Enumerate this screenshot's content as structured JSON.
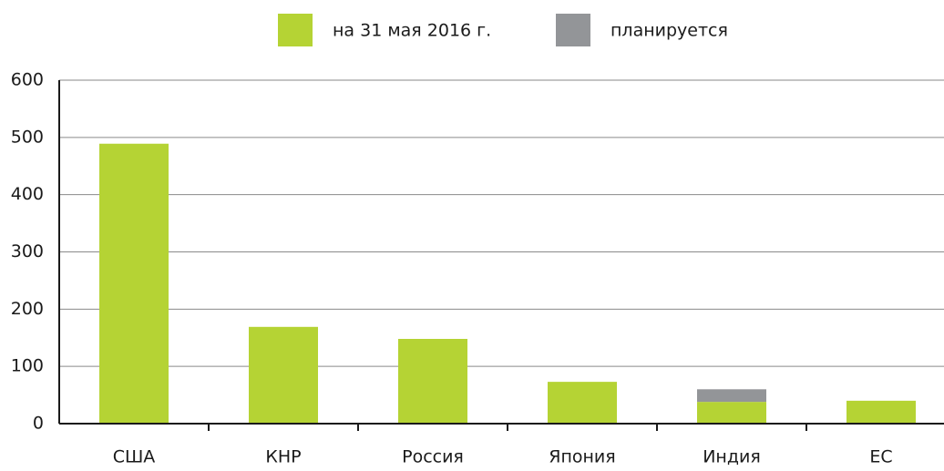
{
  "chart_data": {
    "type": "stacked_bar",
    "categories": [
      "США",
      "КНР",
      "Россия",
      "Япония",
      "Индия",
      "ЕС"
    ],
    "series": [
      {
        "name": "на 31 мая 2016 г.",
        "color": "#b5d334",
        "values": [
          489,
          169,
          148,
          73,
          38,
          40
        ]
      },
      {
        "name": "планируется",
        "color": "#939598",
        "values": [
          null,
          null,
          null,
          null,
          22,
          null
        ]
      }
    ],
    "ylim": [
      0,
      600
    ],
    "yticks": [
      0,
      100,
      200,
      300,
      400,
      500,
      600
    ],
    "grid": true,
    "legend": "top"
  }
}
